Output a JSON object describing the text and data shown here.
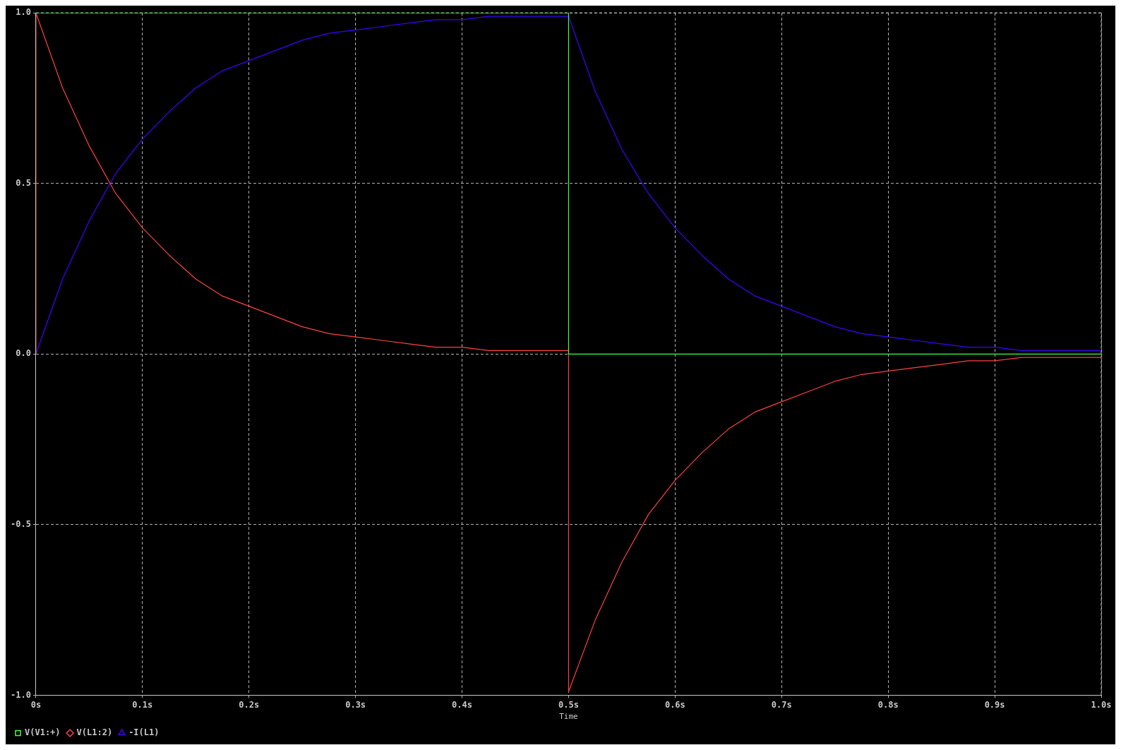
{
  "chart_data": {
    "type": "line",
    "xlabel": "Time",
    "xlim": [
      0,
      1.0
    ],
    "ylim": [
      -1.0,
      1.0
    ],
    "xticks": [
      {
        "value": 0,
        "label": "0s"
      },
      {
        "value": 0.1,
        "label": "0.1s"
      },
      {
        "value": 0.2,
        "label": "0.2s"
      },
      {
        "value": 0.3,
        "label": "0.3s"
      },
      {
        "value": 0.4,
        "label": "0.4s"
      },
      {
        "value": 0.5,
        "label": "0.5s"
      },
      {
        "value": 0.6,
        "label": "0.6s"
      },
      {
        "value": 0.7,
        "label": "0.7s"
      },
      {
        "value": 0.8,
        "label": "0.8s"
      },
      {
        "value": 0.9,
        "label": "0.9s"
      },
      {
        "value": 1.0,
        "label": "1.0s"
      }
    ],
    "yticks": [
      {
        "value": -1.0,
        "label": "-1.0"
      },
      {
        "value": -0.5,
        "label": "-0.5"
      },
      {
        "value": 0,
        "label": "0.0"
      },
      {
        "value": 0.5,
        "label": "0.5"
      },
      {
        "value": 1.0,
        "label": "1.0"
      }
    ],
    "grid": true,
    "legend": "bottom left",
    "marker": "none",
    "line_style": "solid",
    "series": [
      {
        "name": "V(V1:+)",
        "color": "#40ff40",
        "x": [
          0,
          0.5,
          0.5,
          1.0
        ],
        "values": [
          1.0,
          1.0,
          0,
          0
        ]
      },
      {
        "name": "V(L1:2)",
        "color": "#ff4040",
        "x": [
          0,
          0,
          0.025,
          0.05,
          0.075,
          0.1,
          0.125,
          0.15,
          0.175,
          0.2,
          0.225,
          0.25,
          0.275,
          0.3,
          0.325,
          0.35,
          0.375,
          0.4,
          0.425,
          0.45,
          0.475,
          0.5,
          0.5,
          0.525,
          0.55,
          0.575,
          0.6,
          0.625,
          0.65,
          0.675,
          0.7,
          0.725,
          0.75,
          0.775,
          0.8,
          0.825,
          0.85,
          0.875,
          0.9,
          0.925,
          0.95,
          0.975,
          1.0
        ],
        "values": [
          0,
          1.0,
          0.78,
          0.61,
          0.47,
          0.37,
          0.29,
          0.22,
          0.17,
          0.14,
          0.11,
          0.08,
          0.06,
          0.05,
          0.04,
          0.03,
          0.02,
          0.02,
          0.01,
          0.01,
          0.01,
          0.01,
          -0.99,
          -0.78,
          -0.61,
          -0.47,
          -0.37,
          -0.29,
          -0.22,
          -0.17,
          -0.14,
          -0.11,
          -0.08,
          -0.06,
          -0.05,
          -0.04,
          -0.03,
          -0.02,
          -0.02,
          -0.01,
          -0.01,
          -0.01,
          -0.01
        ]
      },
      {
        "name": "-I(L1)",
        "color": "#4000ff",
        "x": [
          0,
          0.025,
          0.05,
          0.075,
          0.1,
          0.125,
          0.15,
          0.175,
          0.2,
          0.225,
          0.25,
          0.275,
          0.3,
          0.325,
          0.35,
          0.375,
          0.4,
          0.425,
          0.45,
          0.475,
          0.5,
          0.525,
          0.55,
          0.575,
          0.6,
          0.625,
          0.65,
          0.675,
          0.7,
          0.725,
          0.75,
          0.775,
          0.8,
          0.825,
          0.85,
          0.875,
          0.9,
          0.925,
          0.95,
          0.975,
          1.0
        ],
        "values": [
          0,
          0.22,
          0.39,
          0.53,
          0.63,
          0.71,
          0.78,
          0.83,
          0.86,
          0.89,
          0.92,
          0.94,
          0.95,
          0.96,
          0.97,
          0.98,
          0.98,
          0.99,
          0.99,
          0.99,
          0.99,
          0.77,
          0.6,
          0.47,
          0.37,
          0.29,
          0.22,
          0.17,
          0.14,
          0.11,
          0.08,
          0.06,
          0.05,
          0.04,
          0.03,
          0.02,
          0.02,
          0.01,
          0.01,
          0.01,
          0.01
        ]
      }
    ]
  }
}
